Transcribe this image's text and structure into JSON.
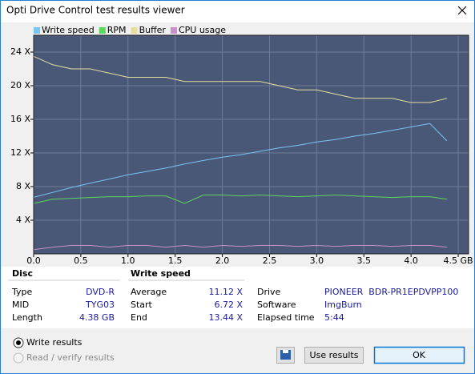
{
  "window": {
    "title": "Opti Drive Control test results viewer"
  },
  "chart_data": {
    "type": "line",
    "x": [
      0,
      0.2,
      0.4,
      0.6,
      0.8,
      1.0,
      1.2,
      1.4,
      1.6,
      1.8,
      2.0,
      2.2,
      2.4,
      2.6,
      2.8,
      3.0,
      3.2,
      3.4,
      3.6,
      3.8,
      4.0,
      4.2,
      4.38
    ],
    "series": [
      {
        "name": "Write speed",
        "color": "#78c4f2",
        "values": [
          6.72,
          7.3,
          7.9,
          8.4,
          8.9,
          9.4,
          9.8,
          10.2,
          10.7,
          11.1,
          11.5,
          11.8,
          12.2,
          12.6,
          12.9,
          13.3,
          13.6,
          14.0,
          14.3,
          14.7,
          15.1,
          15.5,
          13.44
        ]
      },
      {
        "name": "RPM",
        "color": "#5cd65c",
        "values": [
          6.0,
          6.5,
          6.6,
          6.7,
          6.8,
          6.8,
          6.9,
          6.9,
          6.0,
          7.0,
          7.0,
          6.9,
          7.0,
          6.9,
          6.8,
          6.9,
          7.0,
          6.9,
          6.8,
          6.7,
          6.8,
          6.8,
          6.5
        ]
      },
      {
        "name": "Buffer",
        "color": "#e6dea0",
        "values": [
          23.5,
          22.5,
          22.0,
          22.0,
          21.5,
          21.0,
          21.0,
          21.0,
          20.5,
          20.5,
          20.5,
          20.5,
          20.5,
          20.0,
          19.5,
          19.5,
          19.0,
          18.5,
          18.5,
          18.5,
          18.0,
          18.0,
          18.5
        ]
      },
      {
        "name": "CPU usage",
        "color": "#c890c8",
        "values": [
          0.5,
          0.8,
          1.0,
          1.0,
          0.8,
          1.0,
          1.0,
          0.8,
          1.0,
          0.8,
          1.0,
          0.9,
          1.0,
          1.0,
          0.9,
          1.0,
          0.9,
          1.0,
          1.0,
          0.9,
          1.0,
          1.0,
          0.8
        ]
      }
    ],
    "xlim": [
      0,
      4.61
    ],
    "ylim": [
      0,
      26
    ],
    "xticks": [
      {
        "value": 0,
        "label": "0.0"
      },
      0.5,
      {
        "value": 1,
        "label": "1.0"
      },
      1.5,
      {
        "value": 2,
        "label": "2.0"
      },
      2.5,
      {
        "value": 3,
        "label": "3.0"
      },
      3.5,
      {
        "value": 4,
        "label": "4.0"
      },
      {
        "value": 4.5,
        "label": "4.5 GB"
      }
    ],
    "yticks": [
      {
        "value": 4,
        "label": "4 X"
      },
      {
        "value": 8,
        "label": "8 X"
      },
      {
        "value": 12,
        "label": "12 X"
      },
      {
        "value": 16,
        "label": "16 X"
      },
      {
        "value": 20,
        "label": "20 X"
      },
      {
        "value": 24,
        "label": "24 X"
      }
    ],
    "grid": true
  },
  "disc": {
    "heading": "Disc",
    "rows": [
      [
        "Type",
        "DVD-R"
      ],
      [
        "MID",
        "TYG03"
      ],
      [
        "Length",
        "4.38 GB"
      ]
    ]
  },
  "write_speed": {
    "heading": "Write speed",
    "rows": [
      [
        "Average",
        "11.12 X"
      ],
      [
        "Start",
        "6.72 X"
      ],
      [
        "End",
        "13.44 X"
      ]
    ]
  },
  "info": {
    "rows": [
      [
        "Drive",
        "PIONEER  BDR-PR1EPDVPP100"
      ],
      [
        "Software",
        "ImgBurn"
      ],
      [
        "Elapsed time",
        "5:44"
      ]
    ]
  },
  "options": {
    "write_results": "Write results",
    "read_results": "Read / verify results"
  },
  "buttons": {
    "use": "Use results",
    "ok": "OK"
  }
}
